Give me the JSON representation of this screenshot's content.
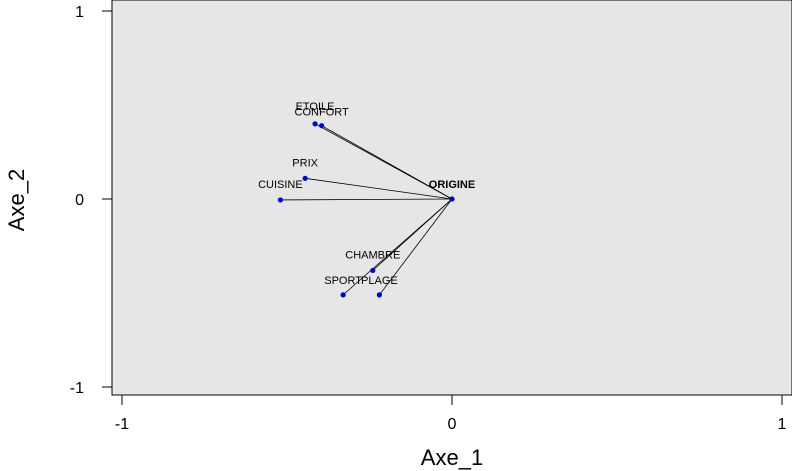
{
  "chart_data": {
    "type": "scatter",
    "title": "",
    "xlabel": "Axe_1",
    "ylabel": "Axe_2",
    "xlim": [
      -1.03,
      1.0
    ],
    "ylim": [
      -1.0,
      1.0
    ],
    "x_ticks": [
      -1,
      0,
      1
    ],
    "x_tick_labels": [
      "-1",
      "0",
      "1"
    ],
    "y_ticks": [
      -1,
      0,
      1
    ],
    "y_tick_labels": [
      "-1",
      "0",
      "1"
    ],
    "grid": false,
    "plot_background": "#e6e6e6",
    "point_color": "#0000cc",
    "line_color": "#000000",
    "origin": {
      "label": "ORIGINE",
      "x": 0.0,
      "y": 0.0
    },
    "points": [
      {
        "label": "ETOILE",
        "x": -0.415,
        "y": 0.4
      },
      {
        "label": "CONFORT",
        "x": -0.395,
        "y": 0.39
      },
      {
        "label": "PRIX",
        "x": -0.445,
        "y": 0.11
      },
      {
        "label": "CUISINE",
        "x": -0.52,
        "y": -0.005
      },
      {
        "label": "CHAMBRE",
        "x": -0.24,
        "y": -0.38
      },
      {
        "label": "SPORT",
        "x": -0.33,
        "y": -0.51
      },
      {
        "label": "PLAGE",
        "x": -0.22,
        "y": -0.51
      }
    ]
  }
}
